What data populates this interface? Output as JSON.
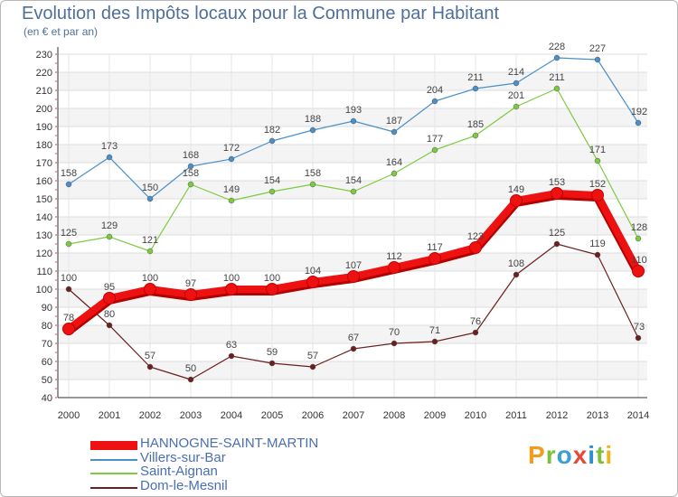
{
  "title": "Evolution des Impôts locaux pour la Commune par Habitant",
  "subtitle": "(en € et par an)",
  "logo": {
    "p": "P",
    "r": "r",
    "o": "o",
    "x": "x",
    "i": "i",
    "t": "t",
    "i2": "i"
  },
  "chart_data": {
    "type": "line",
    "title": "Evolution des Impôts locaux pour la Commune par Habitant",
    "ylabel": "(en € et par an)",
    "ylim": [
      40,
      230
    ],
    "yticks": [
      40,
      50,
      60,
      70,
      80,
      90,
      100,
      110,
      120,
      130,
      140,
      150,
      160,
      170,
      180,
      190,
      200,
      210,
      220,
      230
    ],
    "categories": [
      "2000",
      "2001",
      "2002",
      "2003",
      "2004",
      "2005",
      "2006",
      "2007",
      "2008",
      "2009",
      "2010",
      "2011",
      "2012",
      "2013",
      "2014"
    ],
    "grid": true,
    "legend_position": "bottom-left",
    "series": [
      {
        "name": "HANNOGNE-SAINT-MARTIN",
        "color": "#ee1111",
        "values": [
          78,
          95,
          100,
          97,
          100,
          100,
          104,
          107,
          112,
          117,
          123,
          149,
          153,
          152,
          110
        ]
      },
      {
        "name": "Villers-sur-Bar",
        "color": "#4a8fc8",
        "values": [
          158,
          173,
          150,
          168,
          172,
          182,
          188,
          193,
          187,
          204,
          211,
          214,
          228,
          227,
          192
        ]
      },
      {
        "name": "Saint-Aignan",
        "color": "#7ccb3f",
        "values": [
          125,
          129,
          121,
          158,
          149,
          154,
          158,
          154,
          164,
          177,
          185,
          201,
          211,
          171,
          128
        ]
      },
      {
        "name": "Dom-le-Mesnil",
        "color": "#6b1f1f",
        "values": [
          100,
          80,
          57,
          50,
          63,
          59,
          57,
          67,
          70,
          71,
          76,
          108,
          125,
          119,
          73
        ]
      }
    ]
  }
}
